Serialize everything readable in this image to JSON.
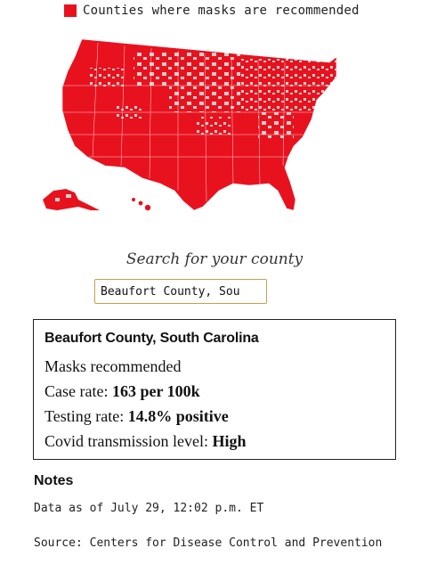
{
  "legend": {
    "label": "Counties where masks are recommended",
    "color": "#e8121e"
  },
  "map": {
    "fill_color": "#e8121e",
    "background_color": "#cfcfcf",
    "icon": "us-county-map"
  },
  "search": {
    "label": "Search for your county",
    "value": "Beaufort County, Sou"
  },
  "result": {
    "title": "Beaufort County, South Carolina",
    "status": "Masks recommended",
    "case_rate_label": "Case rate: ",
    "case_rate_value": "163 per 100k",
    "testing_rate_label": "Testing rate: ",
    "testing_rate_value": "14.8% positive",
    "transmission_label": "Covid transmission level: ",
    "transmission_value": "High"
  },
  "notes": {
    "heading": "Notes",
    "data_as_of": "Data as of July 29, 12:02 p.m. ET",
    "source": "Source: Centers for Disease Control and Prevention"
  }
}
